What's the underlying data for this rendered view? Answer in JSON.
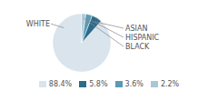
{
  "chart_data": {
    "type": "pie",
    "categories": [
      "WHITE",
      "ASIAN",
      "HISPANIC",
      "BLACK"
    ],
    "values": [
      88.4,
      5.8,
      3.6,
      2.2
    ],
    "value_labels": [
      "88.4%",
      "5.8%",
      "3.6%",
      "2.2%"
    ],
    "colors": [
      "#d9e4ed",
      "#2e6b8a",
      "#5a9ab5",
      "#a8c8d8"
    ],
    "legend": "bottom"
  }
}
